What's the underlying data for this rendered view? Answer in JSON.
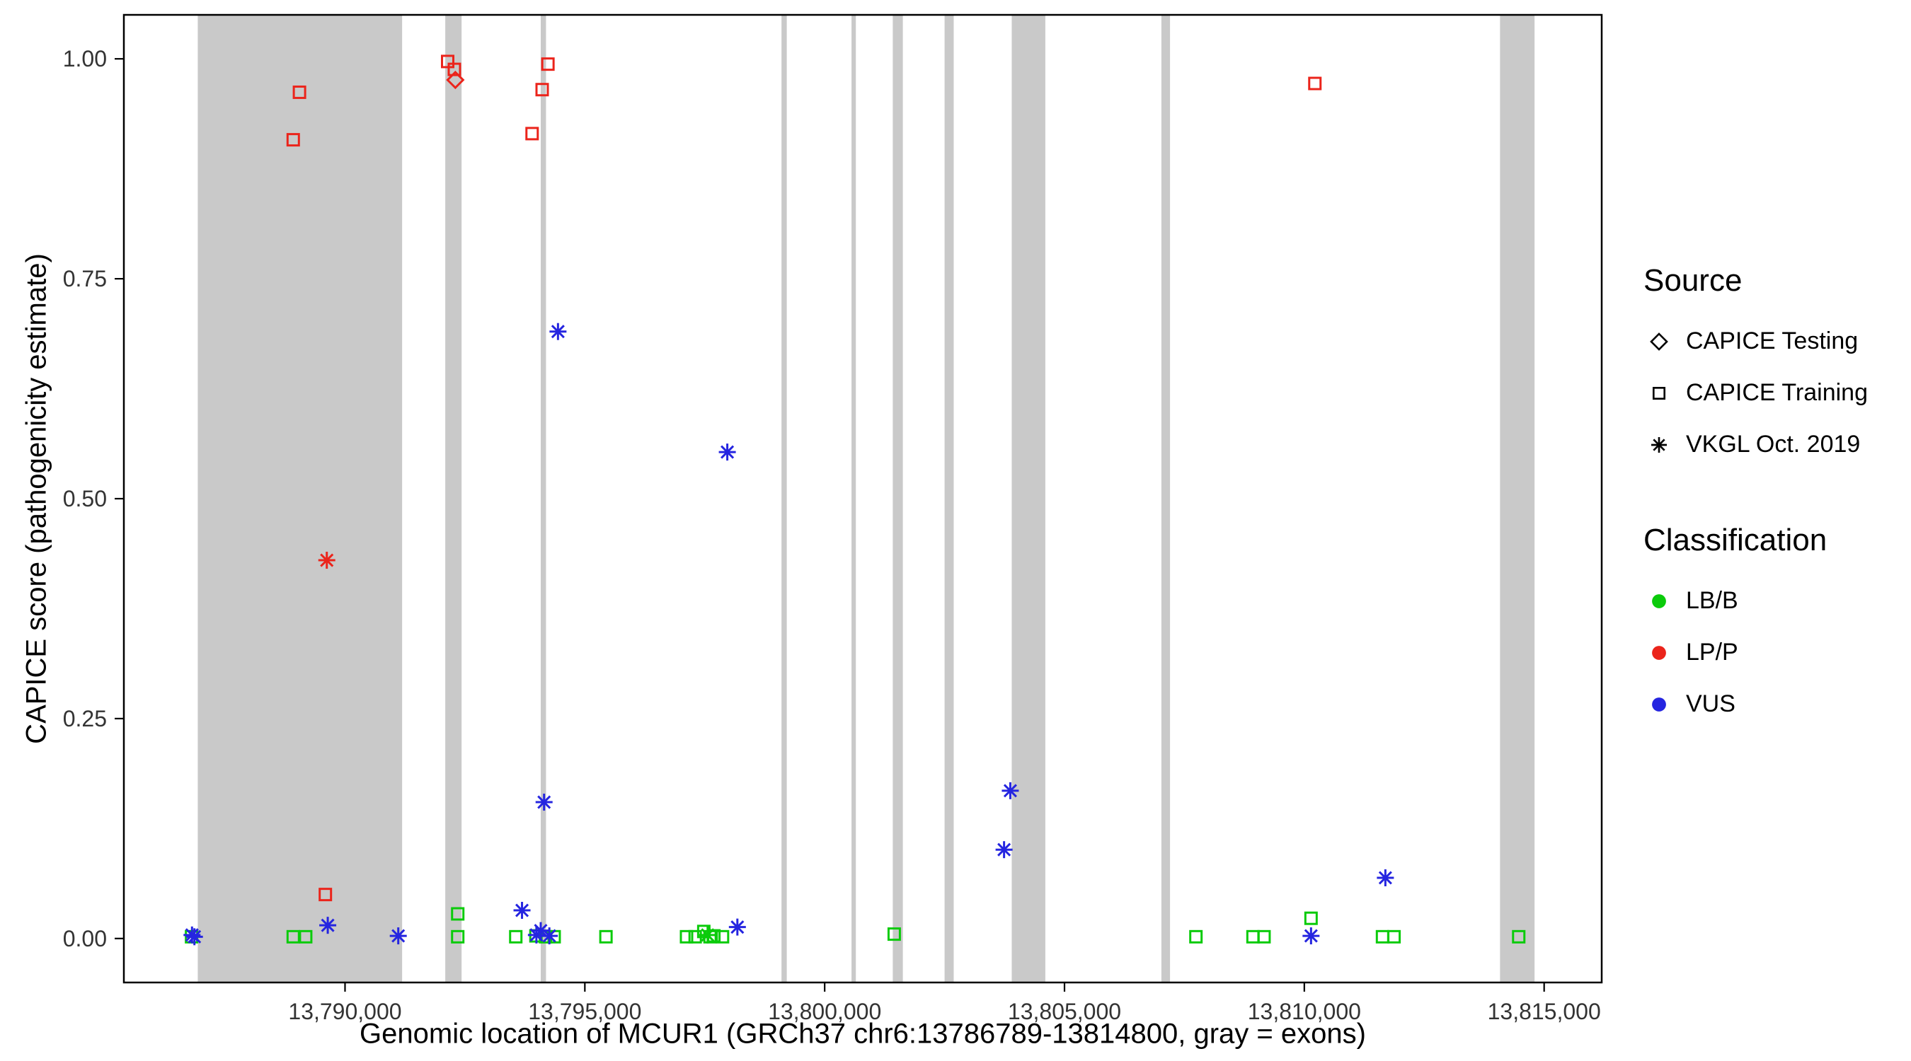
{
  "chart_data": {
    "type": "scatter",
    "title": "",
    "xlabel": "Genomic location of MCUR1 (GRCh37 chr6:13786789-13814800, gray = exons)",
    "ylabel": "CAPICE score (pathogenicity estimate)",
    "xlim": [
      13785389,
      13816200
    ],
    "ylim": [
      -0.05,
      1.05
    ],
    "grid": false,
    "x_ticks": [
      {
        "value": 13790000,
        "label": "13,790,000"
      },
      {
        "value": 13795000,
        "label": "13,795,000"
      },
      {
        "value": 13800000,
        "label": "13,800,000"
      },
      {
        "value": 13805000,
        "label": "13,805,000"
      },
      {
        "value": 13810000,
        "label": "13,810,000"
      },
      {
        "value": 13815000,
        "label": "13,815,000"
      }
    ],
    "y_ticks": [
      {
        "value": 0.0,
        "label": "0.00"
      },
      {
        "value": 0.25,
        "label": "0.25"
      },
      {
        "value": 0.5,
        "label": "0.50"
      },
      {
        "value": 0.75,
        "label": "0.75"
      },
      {
        "value": 1.0,
        "label": "1.00"
      }
    ],
    "exon_color": "#C9C9C9",
    "exons": [
      [
        13786930,
        13791190
      ],
      [
        13792090,
        13792430
      ],
      [
        13794080,
        13794190
      ],
      [
        13799100,
        13799210
      ],
      [
        13800560,
        13800650
      ],
      [
        13801420,
        13801630
      ],
      [
        13802500,
        13802690
      ],
      [
        13803900,
        13804600
      ],
      [
        13807020,
        13807200
      ],
      [
        13814080,
        13814800
      ]
    ],
    "classification_colors": {
      "LB/B": "#0BCB0B",
      "LP/P": "#EB241B",
      "VUS": "#2525E0"
    },
    "series": [
      {
        "name": "CAPICE Testing",
        "shape": "diamond",
        "points": [
          {
            "x": 13792300,
            "y": 0.976,
            "cls": "LP/P"
          }
        ]
      },
      {
        "name": "CAPICE Training",
        "shape": "square",
        "points": [
          {
            "x": 13789050,
            "y": 0.962,
            "cls": "LP/P"
          },
          {
            "x": 13788920,
            "y": 0.908,
            "cls": "LP/P"
          },
          {
            "x": 13792140,
            "y": 0.997,
            "cls": "LP/P"
          },
          {
            "x": 13792280,
            "y": 0.988,
            "cls": "LP/P"
          },
          {
            "x": 13794230,
            "y": 0.994,
            "cls": "LP/P"
          },
          {
            "x": 13794110,
            "y": 0.965,
            "cls": "LP/P"
          },
          {
            "x": 13793900,
            "y": 0.915,
            "cls": "LP/P"
          },
          {
            "x": 13789590,
            "y": 0.05,
            "cls": "LP/P"
          },
          {
            "x": 13810220,
            "y": 0.972,
            "cls": "LP/P"
          },
          {
            "x": 13786800,
            "y": 0.002,
            "cls": "LB/B"
          },
          {
            "x": 13788920,
            "y": 0.002,
            "cls": "LB/B"
          },
          {
            "x": 13789180,
            "y": 0.002,
            "cls": "LB/B"
          },
          {
            "x": 13792350,
            "y": 0.028,
            "cls": "LB/B"
          },
          {
            "x": 13792350,
            "y": 0.002,
            "cls": "LB/B"
          },
          {
            "x": 13793560,
            "y": 0.002,
            "cls": "LB/B"
          },
          {
            "x": 13793980,
            "y": 0.003,
            "cls": "LB/B"
          },
          {
            "x": 13794180,
            "y": 0.002,
            "cls": "LB/B"
          },
          {
            "x": 13794360,
            "y": 0.002,
            "cls": "LB/B"
          },
          {
            "x": 13795440,
            "y": 0.002,
            "cls": "LB/B"
          },
          {
            "x": 13797120,
            "y": 0.002,
            "cls": "LB/B"
          },
          {
            "x": 13797300,
            "y": 0.002,
            "cls": "LB/B"
          },
          {
            "x": 13797480,
            "y": 0.008,
            "cls": "LB/B"
          },
          {
            "x": 13797610,
            "y": 0.002,
            "cls": "LB/B"
          },
          {
            "x": 13797690,
            "y": 0.003,
            "cls": "LB/B"
          },
          {
            "x": 13797870,
            "y": 0.002,
            "cls": "LB/B"
          },
          {
            "x": 13801450,
            "y": 0.005,
            "cls": "LB/B"
          },
          {
            "x": 13807740,
            "y": 0.002,
            "cls": "LB/B"
          },
          {
            "x": 13808930,
            "y": 0.002,
            "cls": "LB/B"
          },
          {
            "x": 13809160,
            "y": 0.002,
            "cls": "LB/B"
          },
          {
            "x": 13810140,
            "y": 0.023,
            "cls": "LB/B"
          },
          {
            "x": 13811630,
            "y": 0.002,
            "cls": "LB/B"
          },
          {
            "x": 13811870,
            "y": 0.002,
            "cls": "LB/B"
          },
          {
            "x": 13814470,
            "y": 0.002,
            "cls": "LB/B"
          }
        ]
      },
      {
        "name": "VKGL Oct. 2019",
        "shape": "asterisk",
        "points": [
          {
            "x": 13789620,
            "y": 0.43,
            "cls": "LP/P"
          },
          {
            "x": 13794440,
            "y": 0.69,
            "cls": "VUS"
          },
          {
            "x": 13797970,
            "y": 0.553,
            "cls": "VUS"
          },
          {
            "x": 13794150,
            "y": 0.155,
            "cls": "VUS"
          },
          {
            "x": 13803870,
            "y": 0.168,
            "cls": "VUS"
          },
          {
            "x": 13803740,
            "y": 0.101,
            "cls": "VUS"
          },
          {
            "x": 13811690,
            "y": 0.069,
            "cls": "VUS"
          },
          {
            "x": 13793690,
            "y": 0.032,
            "cls": "VUS"
          },
          {
            "x": 13789640,
            "y": 0.015,
            "cls": "VUS"
          },
          {
            "x": 13791110,
            "y": 0.003,
            "cls": "VUS"
          },
          {
            "x": 13786810,
            "y": 0.004,
            "cls": "VUS"
          },
          {
            "x": 13786860,
            "y": 0.002,
            "cls": "VUS"
          },
          {
            "x": 13794080,
            "y": 0.009,
            "cls": "VUS"
          },
          {
            "x": 13794260,
            "y": 0.003,
            "cls": "VUS"
          },
          {
            "x": 13793990,
            "y": 0.004,
            "cls": "VUS"
          },
          {
            "x": 13798180,
            "y": 0.013,
            "cls": "VUS"
          },
          {
            "x": 13810140,
            "y": 0.003,
            "cls": "VUS"
          },
          {
            "x": 13797560,
            "y": 0.004,
            "cls": "LB/B"
          }
        ]
      }
    ],
    "legend": {
      "source": {
        "title": "Source",
        "items": [
          {
            "label": "CAPICE Testing",
            "shape": "diamond"
          },
          {
            "label": "CAPICE Training",
            "shape": "square"
          },
          {
            "label": "VKGL Oct. 2019",
            "shape": "asterisk"
          }
        ]
      },
      "classification": {
        "title": "Classification",
        "items": [
          {
            "label": "LB/B",
            "color": "#0BCB0B"
          },
          {
            "label": "LP/P",
            "color": "#EB241B"
          },
          {
            "label": "VUS",
            "color": "#2525E0"
          }
        ]
      }
    }
  }
}
